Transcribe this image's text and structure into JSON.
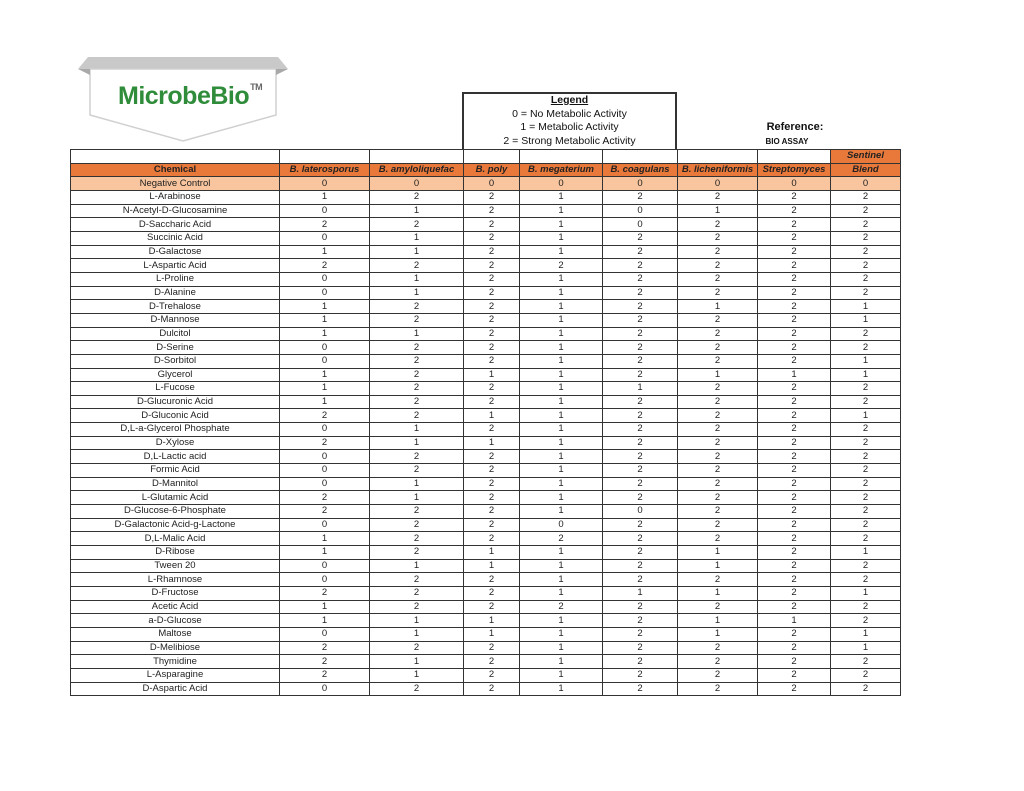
{
  "logo": {
    "text": "MicrobeBio",
    "tm": "TM",
    "color": "#2f8c3a"
  },
  "legend": {
    "title": "Legend",
    "items": [
      "0 = No Metabolic Activity",
      "1 = Metabolic Activity",
      "2 = Strong Metabolic Activity"
    ]
  },
  "reference": {
    "label": "Reference:",
    "value": "BIO ASSAY"
  },
  "table": {
    "header_accent": "#e9793b",
    "highlight_row": "#f8c59e",
    "pre_header": [
      "",
      "",
      "",
      "",
      "",
      "",
      "",
      "",
      "Sentinel"
    ],
    "columns": [
      "Chemical",
      "B. laterosporus",
      "B. amyloliquefac",
      "B. poly",
      "B. megaterium",
      "B. coagulans",
      "B. licheniformis",
      "Streptomyces",
      "Blend"
    ],
    "rows": [
      [
        "Negative Control",
        "0",
        "0",
        "0",
        "0",
        "0",
        "0",
        "0",
        "0"
      ],
      [
        "L-Arabinose",
        "1",
        "2",
        "2",
        "1",
        "2",
        "2",
        "2",
        "2"
      ],
      [
        "N-Acetyl-D-Glucosamine",
        "0",
        "1",
        "2",
        "1",
        "0",
        "1",
        "2",
        "2"
      ],
      [
        "D-Saccharic Acid",
        "2",
        "2",
        "2",
        "1",
        "0",
        "2",
        "2",
        "2"
      ],
      [
        "Succinic Acid",
        "0",
        "1",
        "2",
        "1",
        "2",
        "2",
        "2",
        "2"
      ],
      [
        "D-Galactose",
        "1",
        "1",
        "2",
        "1",
        "2",
        "2",
        "2",
        "2"
      ],
      [
        "L-Aspartic Acid",
        "2",
        "2",
        "2",
        "2",
        "2",
        "2",
        "2",
        "2"
      ],
      [
        "L-Proline",
        "0",
        "1",
        "2",
        "1",
        "2",
        "2",
        "2",
        "2"
      ],
      [
        "D-Alanine",
        "0",
        "1",
        "2",
        "1",
        "2",
        "2",
        "2",
        "2"
      ],
      [
        "D-Trehalose",
        "1",
        "2",
        "2",
        "1",
        "2",
        "1",
        "2",
        "1"
      ],
      [
        "D-Mannose",
        "1",
        "2",
        "2",
        "1",
        "2",
        "2",
        "2",
        "1"
      ],
      [
        "Dulcitol",
        "1",
        "1",
        "2",
        "1",
        "2",
        "2",
        "2",
        "2"
      ],
      [
        "D-Serine",
        "0",
        "2",
        "2",
        "1",
        "2",
        "2",
        "2",
        "2"
      ],
      [
        "D-Sorbitol",
        "0",
        "2",
        "2",
        "1",
        "2",
        "2",
        "2",
        "1"
      ],
      [
        "Glycerol",
        "1",
        "2",
        "1",
        "1",
        "2",
        "1",
        "1",
        "1"
      ],
      [
        "L-Fucose",
        "1",
        "2",
        "2",
        "1",
        "1",
        "2",
        "2",
        "2"
      ],
      [
        "D-Glucuronic Acid",
        "1",
        "2",
        "2",
        "1",
        "2",
        "2",
        "2",
        "2"
      ],
      [
        "D-Gluconic Acid",
        "2",
        "2",
        "1",
        "1",
        "2",
        "2",
        "2",
        "1"
      ],
      [
        "D,L-a-Glycerol Phosphate",
        "0",
        "1",
        "2",
        "1",
        "2",
        "2",
        "2",
        "2"
      ],
      [
        "D-Xylose",
        "2",
        "1",
        "1",
        "1",
        "2",
        "2",
        "2",
        "2"
      ],
      [
        "D,L-Lactic acid",
        "0",
        "2",
        "2",
        "1",
        "2",
        "2",
        "2",
        "2"
      ],
      [
        "Formic Acid",
        "0",
        "2",
        "2",
        "1",
        "2",
        "2",
        "2",
        "2"
      ],
      [
        "D-Mannitol",
        "0",
        "1",
        "2",
        "1",
        "2",
        "2",
        "2",
        "2"
      ],
      [
        "L-Glutamic Acid",
        "2",
        "1",
        "2",
        "1",
        "2",
        "2",
        "2",
        "2"
      ],
      [
        "D-Glucose-6-Phosphate",
        "2",
        "2",
        "2",
        "1",
        "0",
        "2",
        "2",
        "2"
      ],
      [
        "D-Galactonic Acid-g-Lactone",
        "0",
        "2",
        "2",
        "0",
        "2",
        "2",
        "2",
        "2"
      ],
      [
        "D,L-Malic Acid",
        "1",
        "2",
        "2",
        "2",
        "2",
        "2",
        "2",
        "2"
      ],
      [
        "D-Ribose",
        "1",
        "2",
        "1",
        "1",
        "2",
        "1",
        "2",
        "1"
      ],
      [
        "Tween 20",
        "0",
        "1",
        "1",
        "1",
        "2",
        "1",
        "2",
        "2"
      ],
      [
        "L-Rhamnose",
        "0",
        "2",
        "2",
        "1",
        "2",
        "2",
        "2",
        "2"
      ],
      [
        "D-Fructose",
        "2",
        "2",
        "2",
        "1",
        "1",
        "1",
        "2",
        "1"
      ],
      [
        "Acetic Acid",
        "1",
        "2",
        "2",
        "2",
        "2",
        "2",
        "2",
        "2"
      ],
      [
        "a-D-Glucose",
        "1",
        "1",
        "1",
        "1",
        "2",
        "1",
        "1",
        "2"
      ],
      [
        "Maltose",
        "0",
        "1",
        "1",
        "1",
        "2",
        "1",
        "2",
        "1"
      ],
      [
        "D-Melibiose",
        "2",
        "2",
        "2",
        "1",
        "2",
        "2",
        "2",
        "1"
      ],
      [
        "Thymidine",
        "2",
        "1",
        "2",
        "1",
        "2",
        "2",
        "2",
        "2"
      ],
      [
        "L-Asparagine",
        "2",
        "1",
        "2",
        "1",
        "2",
        "2",
        "2",
        "2"
      ],
      [
        "D-Aspartic Acid",
        "0",
        "2",
        "2",
        "1",
        "2",
        "2",
        "2",
        "2"
      ]
    ]
  }
}
